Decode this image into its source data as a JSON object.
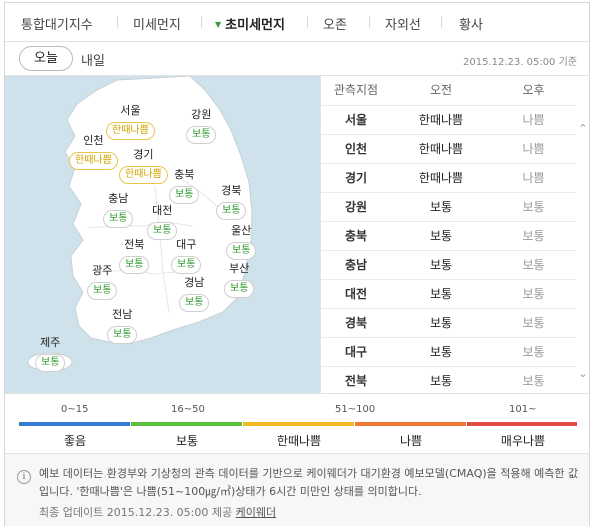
{
  "tabs": [
    "통합대기지수",
    "미세먼지",
    "초미세먼지",
    "오존",
    "자외선",
    "황사"
  ],
  "days": {
    "today": "오늘",
    "tomorrow": "내일"
  },
  "timestamp": "2015.12.23. 05:00 기준",
  "map_regions": [
    {
      "name": "서울",
      "level": "한때나쁨"
    },
    {
      "name": "강원",
      "level": "보통"
    },
    {
      "name": "인천",
      "level": "한때나쁨"
    },
    {
      "name": "경기",
      "level": "한때나쁨"
    },
    {
      "name": "충북",
      "level": "보통"
    },
    {
      "name": "충남",
      "level": "보통"
    },
    {
      "name": "경북",
      "level": "보통"
    },
    {
      "name": "대전",
      "level": "보통"
    },
    {
      "name": "울산",
      "level": "보통"
    },
    {
      "name": "전북",
      "level": "보통"
    },
    {
      "name": "대구",
      "level": "보통"
    },
    {
      "name": "광주",
      "level": "보통"
    },
    {
      "name": "부산",
      "level": "보통"
    },
    {
      "name": "경남",
      "level": "보통"
    },
    {
      "name": "전남",
      "level": "보통"
    },
    {
      "name": "제주",
      "level": "보통"
    }
  ],
  "table": {
    "headers": [
      "관측지점",
      "오전",
      "오후"
    ],
    "rows": [
      [
        "서울",
        "한때나쁨",
        "나쁨"
      ],
      [
        "인천",
        "한때나쁨",
        "나쁨"
      ],
      [
        "경기",
        "한때나쁨",
        "나쁨"
      ],
      [
        "강원",
        "보통",
        "보통"
      ],
      [
        "충북",
        "보통",
        "보통"
      ],
      [
        "충남",
        "보통",
        "보통"
      ],
      [
        "대전",
        "보통",
        "보통"
      ],
      [
        "경북",
        "보통",
        "보통"
      ],
      [
        "대구",
        "보통",
        "보통"
      ],
      [
        "전북",
        "보통",
        "보통"
      ]
    ]
  },
  "scale": {
    "ticks": [
      "0~15",
      "16~50",
      "51~100",
      "101~"
    ],
    "levels": [
      "좋음",
      "보통",
      "한때나쁨",
      "나쁨",
      "매우나쁨"
    ],
    "colors": [
      "#3a7bd5",
      "#5cbf3f",
      "#f0b822",
      "#f07a34",
      "#e04b43"
    ]
  },
  "note": {
    "icon": "info-icon",
    "text": "예보 데이터는 환경부와 기상청의 관측 데이터를 기반으로 케이웨더가 대기환경 예보모델(CMAQ)을 적용해 예측한 값입니다. '한때나쁨'은 나쁨(51~100㎍/㎥)상태가 6시간 미만인 상태를 의미합니다.",
    "update_prefix": "최종 업데이트 2015.12.23. 05:00 제공",
    "provider": "케이웨더"
  }
}
